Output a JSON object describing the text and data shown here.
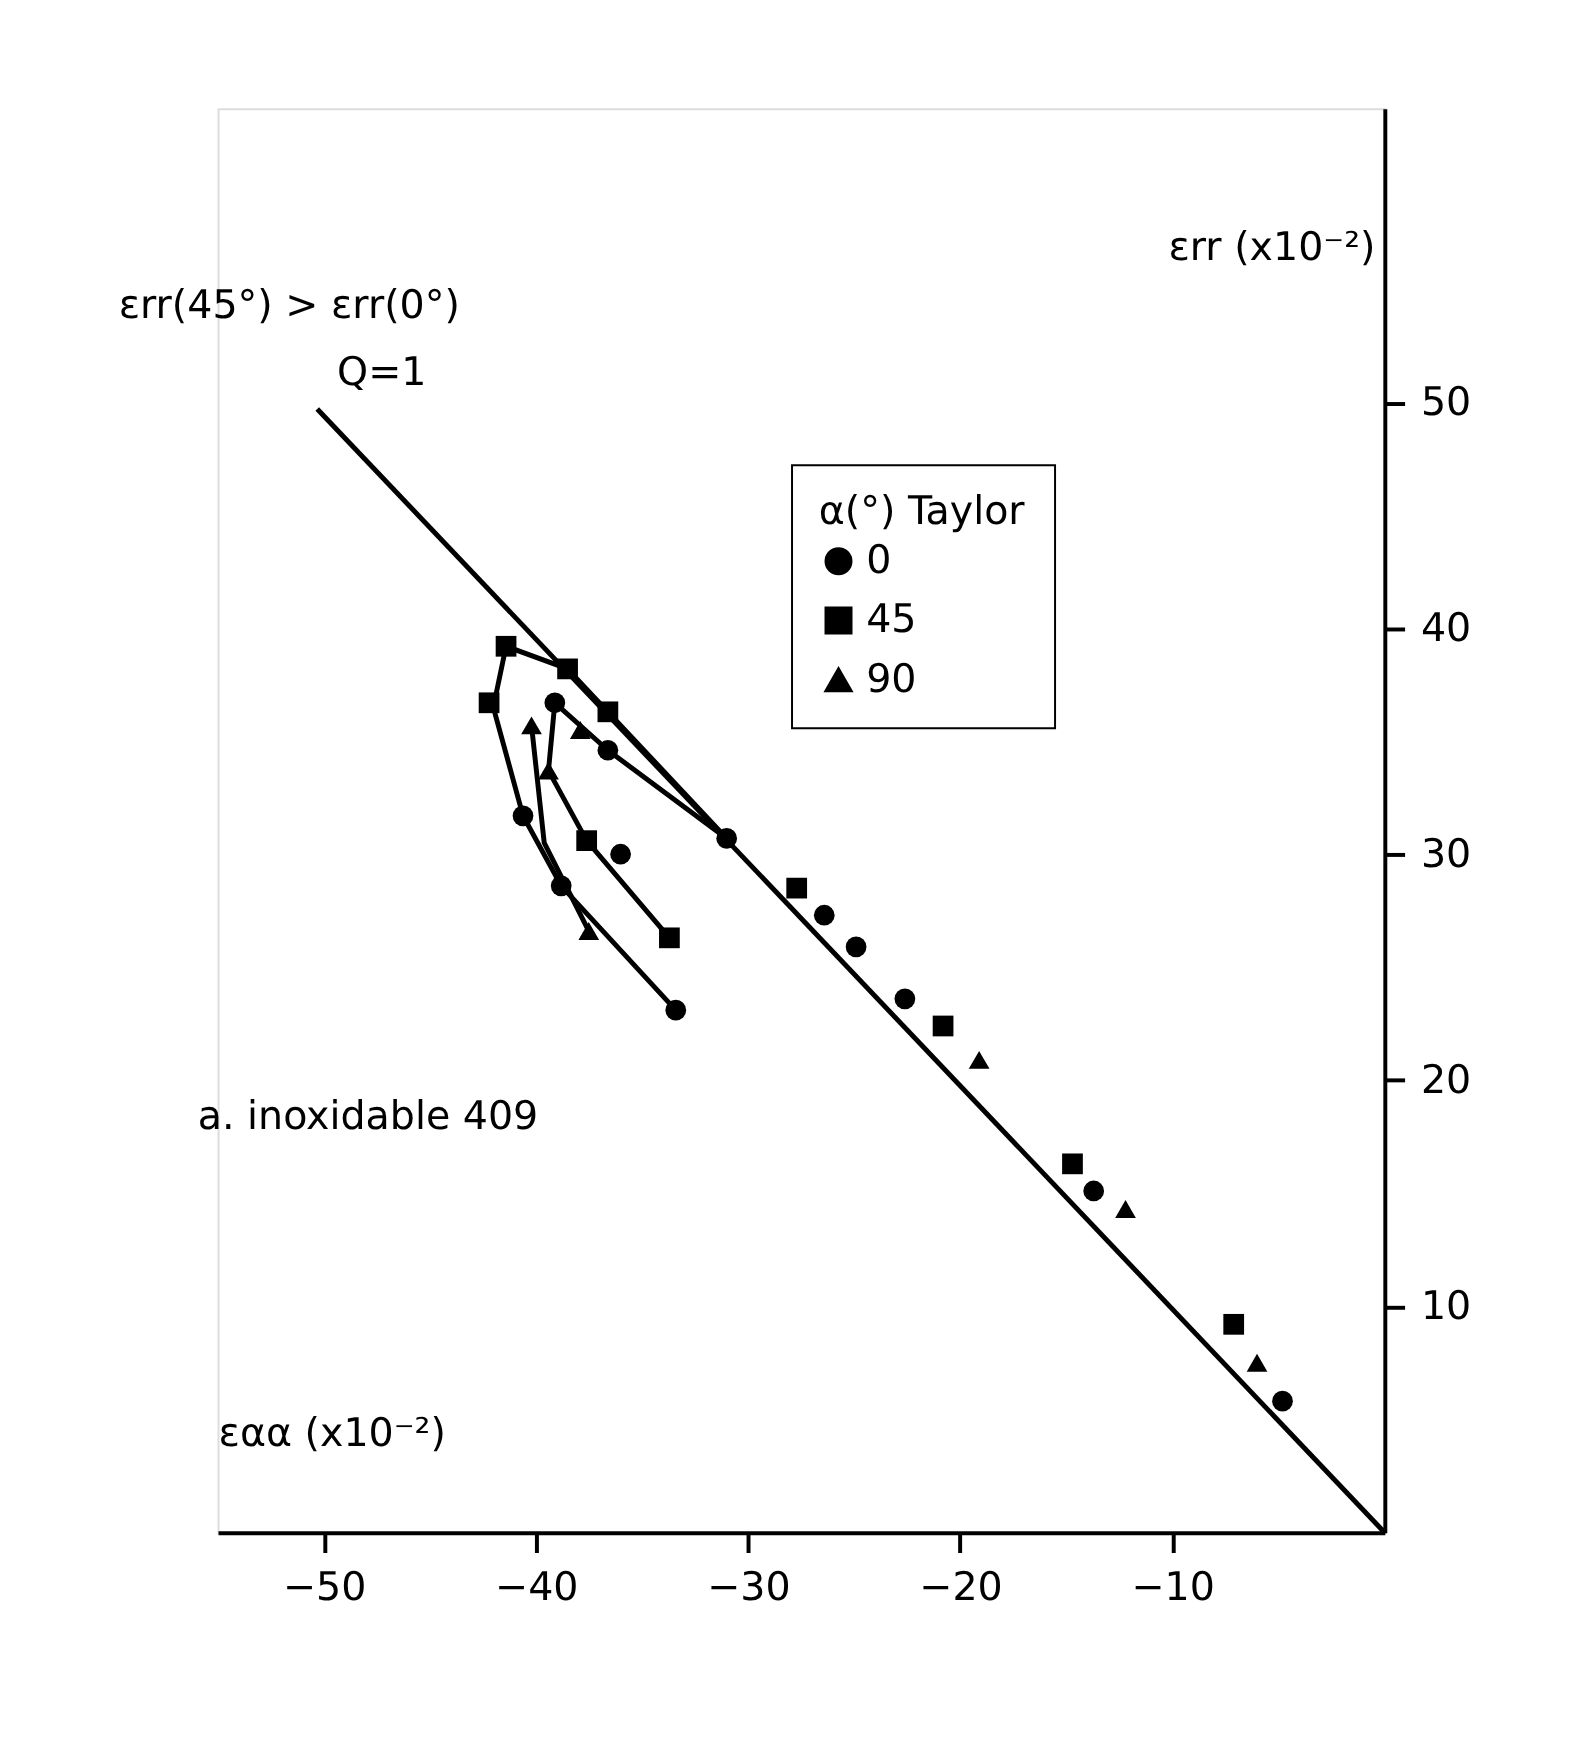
{
  "chart_data": {
    "type": "scatter",
    "xlabel": "εαα (x10⁻²)",
    "ylabel": "εrr (x10⁻²)",
    "legend_title": "α(°) Taylor",
    "xlim": [
      -55,
      0
    ],
    "ylim": [
      0,
      63
    ],
    "xticks": [
      -50,
      -40,
      -30,
      -20,
      -10
    ],
    "yticks": [
      10,
      20,
      30,
      40,
      50
    ],
    "grid": false,
    "legend": "top right",
    "annotations": [
      "εrr(45°) > εrr(0°)",
      "a. inoxidable 409"
    ],
    "series": [
      {
        "name": "0",
        "color": "#000000",
        "marker": "circle",
        "x": [
          -31.0,
          -22.6,
          -24.9,
          -26.4,
          -13.7,
          -4.8,
          -36.6,
          -36.0,
          -40.6,
          -38.8,
          -33.4,
          -39.1
        ],
        "values": [
          30.7,
          23.6,
          25.9,
          27.3,
          15.1,
          5.8,
          34.6,
          30.0,
          31.7,
          28.6,
          23.1,
          36.7
        ]
      },
      {
        "name": "45",
        "color": "#000000",
        "marker": "square",
        "x": [
          -27.7,
          -20.8,
          -14.7,
          -7.1,
          -41.4,
          -38.5,
          -42.2,
          -36.6,
          -37.6,
          -33.7
        ],
        "values": [
          28.5,
          22.4,
          16.3,
          9.2,
          39.2,
          38.2,
          36.7,
          36.3,
          30.6,
          26.3
        ]
      },
      {
        "name": "90",
        "color": "#000000",
        "marker": "triangle",
        "x": [
          -19.1,
          -12.2,
          -6.0,
          -40.2,
          -37.9,
          -39.4,
          -37.5
        ],
        "values": [
          20.9,
          14.3,
          7.5,
          35.7,
          35.5,
          33.7,
          26.6
        ]
      },
      {
        "name": "Q=1",
        "type": "line",
        "color": "#000000",
        "x": [
          -50.3,
          0
        ],
        "values": [
          49.7,
          0
        ]
      },
      {
        "type": "line",
        "color": "#000000",
        "x": [
          -33.4,
          -38.8,
          -40.6,
          -42.0,
          -41.4,
          -38.5,
          -31.0
        ],
        "values": [
          23.1,
          28.6,
          31.7,
          36.5,
          39.2,
          38.2,
          30.7
        ]
      },
      {
        "type": "line",
        "color": "#000000",
        "x": [
          -33.7,
          -37.6,
          -39.4,
          -39.1,
          -36.6,
          -31.0
        ],
        "values": [
          26.3,
          30.6,
          33.7,
          36.7,
          34.6,
          30.7
        ]
      },
      {
        "type": "line",
        "color": "#000000",
        "x": [
          -37.5,
          -39.6,
          -40.2
        ],
        "values": [
          26.6,
          30.5,
          35.7
        ]
      }
    ]
  }
}
